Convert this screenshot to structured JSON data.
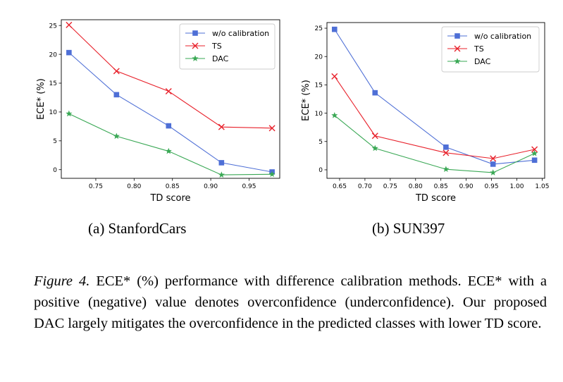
{
  "chart_data": [
    {
      "type": "line",
      "xlabel": "TD score",
      "ylabel": "ECE* (%)",
      "xlim": [
        0.705,
        0.99
      ],
      "ylim": [
        -1.5,
        26
      ],
      "xticks": [
        0.75,
        0.8,
        0.85,
        0.9,
        0.95
      ],
      "xtick_labels": [
        "0.75",
        "0.80",
        "0.85",
        "0.90",
        "0.95"
      ],
      "yticks": [
        0,
        5,
        10,
        15,
        20,
        25
      ],
      "ytick_labels": [
        "0",
        "5",
        "10",
        "15",
        "20",
        "25"
      ],
      "grid": false,
      "legend": "top-right",
      "series": [
        {
          "name": "w/o calibration",
          "color": "#4e6fd6",
          "marker": "square",
          "x": [
            0.715,
            0.777,
            0.845,
            0.914,
            0.98
          ],
          "y": [
            20.3,
            13.0,
            7.6,
            1.2,
            -0.4
          ]
        },
        {
          "name": "TS",
          "color": "#e8212b",
          "marker": "x",
          "x": [
            0.715,
            0.777,
            0.845,
            0.914,
            0.98
          ],
          "y": [
            25.1,
            17.1,
            13.6,
            7.4,
            7.2
          ]
        },
        {
          "name": "DAC",
          "color": "#3aa855",
          "marker": "star",
          "x": [
            0.715,
            0.777,
            0.845,
            0.914,
            0.98
          ],
          "y": [
            9.7,
            5.8,
            3.2,
            -0.9,
            -0.8
          ]
        }
      ]
    },
    {
      "type": "line",
      "xlabel": "TD score",
      "ylabel": "ECE* (%)",
      "xlim": [
        0.625,
        1.055
      ],
      "ylim": [
        -1.5,
        26
      ],
      "xticks": [
        0.65,
        0.7,
        0.75,
        0.8,
        0.85,
        0.9,
        0.95,
        1.0,
        1.05
      ],
      "xtick_labels": [
        "0.65",
        "0.70",
        "0.75",
        "0.80",
        "0.85",
        "0.90",
        "0.95",
        "1.00",
        "1.05"
      ],
      "yticks": [
        0,
        5,
        10,
        15,
        20,
        25
      ],
      "ytick_labels": [
        "0",
        "5",
        "10",
        "15",
        "20",
        "25"
      ],
      "grid": false,
      "legend": "top-right",
      "series": [
        {
          "name": "w/o calibration",
          "color": "#4e6fd6",
          "marker": "square",
          "x": [
            0.64,
            0.72,
            0.86,
            0.953,
            1.035
          ],
          "y": [
            24.8,
            13.6,
            4.0,
            1.0,
            1.7
          ]
        },
        {
          "name": "TS",
          "color": "#e8212b",
          "marker": "x",
          "x": [
            0.64,
            0.72,
            0.86,
            0.953,
            1.035
          ],
          "y": [
            16.5,
            6.0,
            3.0,
            2.0,
            3.6
          ]
        },
        {
          "name": "DAC",
          "color": "#3aa855",
          "marker": "star",
          "x": [
            0.64,
            0.72,
            0.86,
            0.953,
            1.035
          ],
          "y": [
            9.6,
            3.8,
            0.1,
            -0.5,
            2.9
          ]
        }
      ]
    }
  ],
  "subcaptions": [
    "(a) StanfordCars",
    "(b) SUN397"
  ],
  "caption": {
    "label": "Figure 4.",
    "text": "ECE* (%) performance with difference calibration methods. ECE* with a positive (negative) value denotes overconfidence (underconfidence). Our proposed DAC largely mitigates the overconfidence in the predicted classes with lower TD score."
  }
}
